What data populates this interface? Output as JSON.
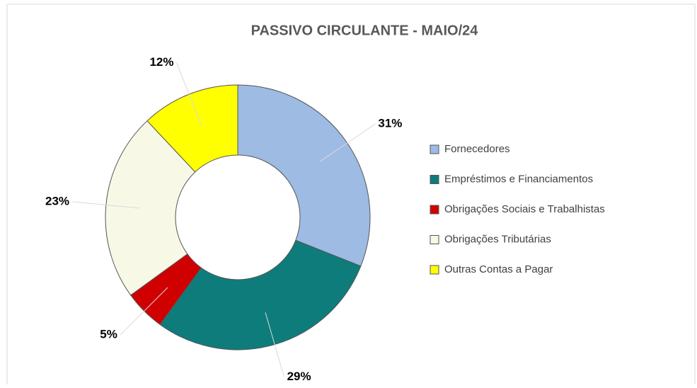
{
  "chart_data": {
    "type": "donut",
    "title": "PASSIVO  CIRCULANTE - MAIO/24",
    "categories": [
      "Fornecedores",
      "Empréstimos e Financiamentos",
      "Obrigações Sociais e Trabalhistas",
      "Obrigações Tributárias",
      "Outras Contas a Pagar"
    ],
    "values": [
      31,
      29,
      5,
      23,
      12
    ],
    "value_labels": [
      "31%",
      "29%",
      "5%",
      "23%",
      "12%"
    ],
    "colors": [
      "#9dbbe3",
      "#0e7c7b",
      "#d00000",
      "#f7f8e6",
      "#ffff00"
    ],
    "legend": "right"
  }
}
